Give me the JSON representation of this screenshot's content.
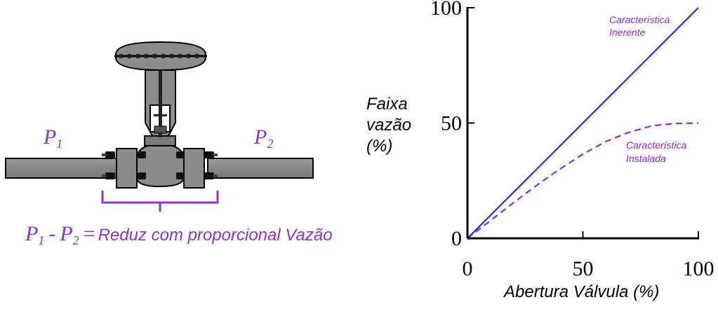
{
  "diagram": {
    "p1": {
      "letter": "P",
      "sub": "1"
    },
    "p2": {
      "letter": "P",
      "sub": "2"
    },
    "equation": {
      "a_letter": "P",
      "a_sub": "1",
      "minus": "-",
      "b_letter": "P",
      "b_sub": "2",
      "equals": "=",
      "text": "Reduz com proporcional  Vazão"
    },
    "colors": {
      "purple": "#8b33cc",
      "valve_fill": "#8c8c8c",
      "valve_dark": "#5a5a5a",
      "outline": "#000000"
    }
  },
  "chart_data": {
    "type": "line",
    "xlabel": "Abertura Válvula (%)",
    "ylabel_lines": [
      "Faixa",
      "vazão",
      "(%)"
    ],
    "xlim": [
      0,
      100
    ],
    "ylim": [
      0,
      100
    ],
    "x_ticks": [
      0,
      50,
      100
    ],
    "y_ticks": [
      0,
      50,
      100
    ],
    "x_tick_labels": [
      "0",
      "50",
      "100"
    ],
    "y_tick_labels": [
      "0",
      "50",
      "100"
    ],
    "grid": false,
    "series": [
      {
        "name_lines": [
          "Característica",
          "Inerente"
        ],
        "color": "#2a2ad6",
        "dash": "solid",
        "x": [
          0,
          100
        ],
        "y": [
          0,
          100
        ]
      },
      {
        "name_lines": [
          "Característica",
          "Instalada"
        ],
        "color": "#8b2ad6",
        "dash": "dashed",
        "x": [
          0,
          10,
          20,
          30,
          40,
          50,
          60,
          70,
          80,
          90,
          100
        ],
        "y": [
          0,
          7.7,
          15.5,
          23,
          30,
          36.5,
          42,
          46,
          48.8,
          49.8,
          50
        ]
      }
    ]
  }
}
